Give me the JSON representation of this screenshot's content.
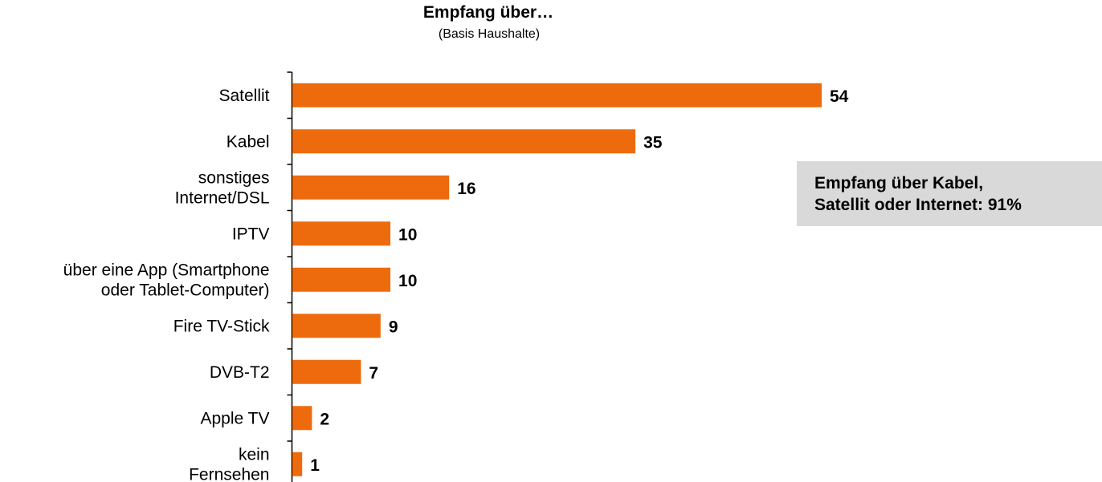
{
  "colors": {
    "bar": "#ed6b0d",
    "axis": "#000000",
    "callout_bg": "#d9d9d9"
  },
  "callout": {
    "line1": "Empfang über Kabel,",
    "line2": "Satellit oder Internet: 91%"
  },
  "chart_data": {
    "type": "bar",
    "orientation": "horizontal",
    "title": "Empfang über…",
    "subtitle": "(Basis Haushalte)",
    "xlim": [
      0,
      54
    ],
    "grid": false,
    "categories": [
      [
        "Satellit"
      ],
      [
        "Kabel"
      ],
      [
        "sonstiges",
        "Internet/DSL"
      ],
      [
        "IPTV"
      ],
      [
        "über eine App (Smartphone",
        "oder Tablet-Computer)"
      ],
      [
        "Fire TV-Stick"
      ],
      [
        "DVB-T2"
      ],
      [
        "Apple TV"
      ],
      [
        "kein",
        "Fernsehen"
      ]
    ],
    "values": [
      54,
      35,
      16,
      10,
      10,
      9,
      7,
      2,
      1
    ]
  }
}
